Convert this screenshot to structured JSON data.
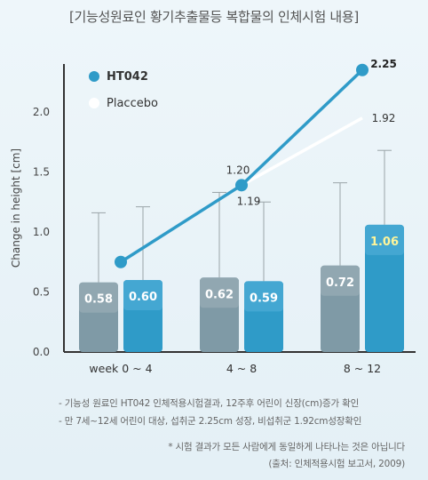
{
  "title": "[기능성원료인 황기추출물등 복합물의 인체시험 내용]",
  "chart_data": {
    "type": "bar",
    "ylabel": "Change in height [cm]",
    "ylim": [
      0,
      2.5
    ],
    "yticks": [
      "0.0",
      "0.5",
      "1.0",
      "1.5",
      "2.0"
    ],
    "categories": [
      "week 0 ~ 4",
      "4 ~ 8",
      "8 ~ 12"
    ],
    "series": [
      {
        "name": "Placcebo",
        "values": [
          0.58,
          0.62,
          0.72
        ],
        "labels": [
          "0.58",
          "0.62",
          "0.72"
        ],
        "error_top": [
          1.16,
          1.33,
          1.41
        ],
        "color": "#7f9aa6"
      },
      {
        "name": "HT042",
        "values": [
          0.6,
          0.59,
          1.06
        ],
        "labels": [
          "0.60",
          "0.59",
          "1.06"
        ],
        "error_top": [
          1.21,
          1.25,
          1.68
        ],
        "color": "#2f9bc8"
      }
    ],
    "lines": [
      {
        "name": "HT042",
        "points": [
          [
            0,
            0.75
          ],
          [
            1,
            1.39
          ],
          [
            2,
            2.35
          ]
        ],
        "labels": [
          "",
          "1.20",
          "2.25"
        ],
        "color": "#2f9bc8"
      },
      {
        "name": "Placcebo",
        "points": [
          [
            1,
            1.39
          ],
          [
            2,
            1.95
          ]
        ],
        "labels": [
          "1.19",
          "1.92"
        ],
        "color": "#ffffff"
      }
    ],
    "legend": [
      {
        "name": "HT042",
        "color": "#2f9bc8"
      },
      {
        "name": "Placcebo",
        "color": "#ffffff"
      }
    ],
    "legend_position": "top-left"
  },
  "notes": [
    "- 기능성 원료인 HT042 인체적용시험결과, 12주후 어린이 신장(cm)증가 확인",
    "- 만 7세~12세 어린이 대상, 섭취군 2.25cm 성장, 비섭취군 1.92cm성장확인"
  ],
  "disclaimer": [
    "* 시험 결과가 모든 사람에게 동일하게 나타나는 것은 아닙니다",
    "(출처: 인체적용시험 보고서, 2009)"
  ]
}
